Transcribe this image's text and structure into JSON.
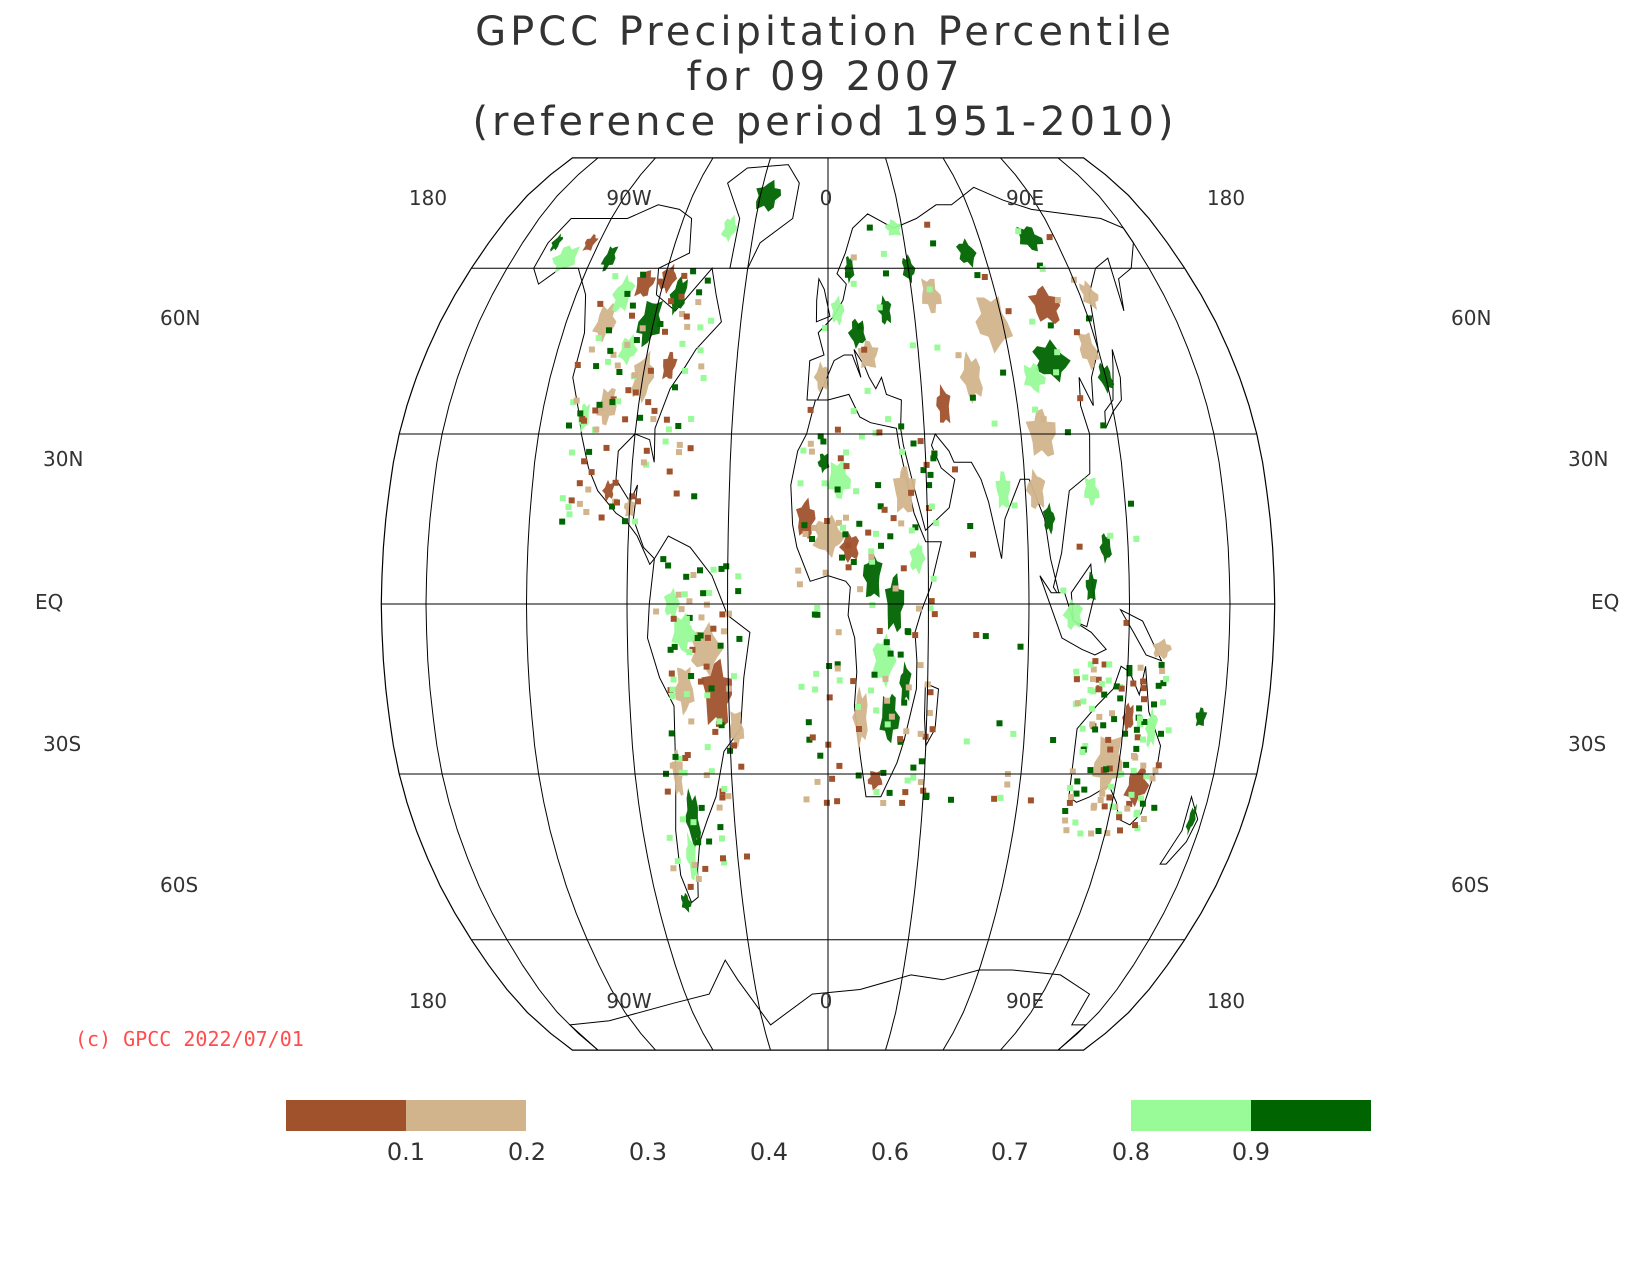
{
  "title": {
    "line1": "GPCC Precipitation Percentile",
    "line2": "for 09 2007",
    "line3": "(reference period 1951-2010)"
  },
  "map": {
    "projection": "Robinson",
    "central_meridian": 0,
    "lon_labels_top": [
      "180",
      "90W",
      "0",
      "90E",
      "180"
    ],
    "lon_labels_bottom": [
      "180",
      "90W",
      "0",
      "90E",
      "180"
    ],
    "lat_labels": [
      {
        "left": "60N",
        "right": "60N"
      },
      {
        "left": "30N",
        "right": "30N"
      },
      {
        "left": "EQ",
        "right": "EQ"
      },
      {
        "left": "30S",
        "right": "30S"
      },
      {
        "left": "60S",
        "right": "60S"
      }
    ]
  },
  "copyright": "(c) GPCC 2022/07/01",
  "legend": {
    "tick_labels": [
      "0.1",
      "0.2",
      "0.3",
      "0.4",
      "0.6",
      "0.7",
      "0.8",
      "0.9"
    ],
    "classes": [
      {
        "range": "< 0.1",
        "color": "#a0522d"
      },
      {
        "range": "0.1 - 0.2",
        "color": "#d2b48c"
      },
      {
        "range": "0.2 - 0.3",
        "color": null
      },
      {
        "range": "0.3 - 0.4",
        "color": null
      },
      {
        "range": "0.4 - 0.6",
        "color": null
      },
      {
        "range": "0.6 - 0.7",
        "color": null
      },
      {
        "range": "0.7 - 0.8",
        "color": null
      },
      {
        "range": "0.8 - 0.9",
        "color": "#98fb98"
      },
      {
        "range": "> 0.9",
        "color": "#006400"
      }
    ]
  },
  "colors": {
    "very_dry": "#a0522d",
    "dry": "#d2b48c",
    "wet": "#98fb98",
    "very_wet": "#006400",
    "grid": "#000000",
    "text": "#333333",
    "copyright": "#ff4d4d"
  }
}
